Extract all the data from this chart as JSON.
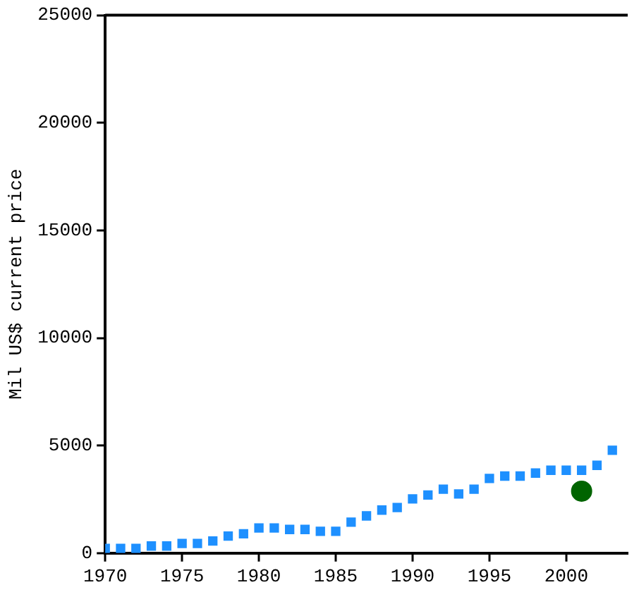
{
  "chart_data": {
    "type": "scatter",
    "ylabel": "Mil US$ current price",
    "xlim": [
      1970,
      2004
    ],
    "xticks": [
      1970,
      1975,
      1980,
      1985,
      1990,
      1995,
      2000
    ],
    "ylim": [
      0,
      25000
    ],
    "yticks": [
      0,
      5000,
      10000,
      15000,
      20000,
      25000
    ],
    "grid": false,
    "legend": false,
    "marker": "square",
    "series": [
      {
        "color": "#1e90ff",
        "x": [
          1970,
          1971,
          1972,
          1973,
          1974,
          1975,
          1976,
          1977,
          1978,
          1979,
          1980,
          1981,
          1982,
          1983,
          1984,
          1985,
          1986,
          1987,
          1988,
          1989,
          1990,
          1991,
          1992,
          1993,
          1994,
          1995,
          1996,
          1997,
          1998,
          1999,
          2000,
          2001,
          2002,
          2003
        ],
        "values": [
          220,
          220,
          220,
          330,
          330,
          450,
          450,
          560,
          790,
          900,
          1170,
          1170,
          1100,
          1100,
          1010,
          1010,
          1440,
          1730,
          2000,
          2120,
          2520,
          2700,
          2970,
          2750,
          2970,
          3470,
          3580,
          3580,
          3720,
          3850,
          3850,
          3850,
          4080,
          4780
        ]
      },
      {
        "type": "scatter",
        "color": "#006400",
        "marker": "circle",
        "x": [
          2001
        ],
        "values": [
          2880
        ]
      }
    ]
  }
}
